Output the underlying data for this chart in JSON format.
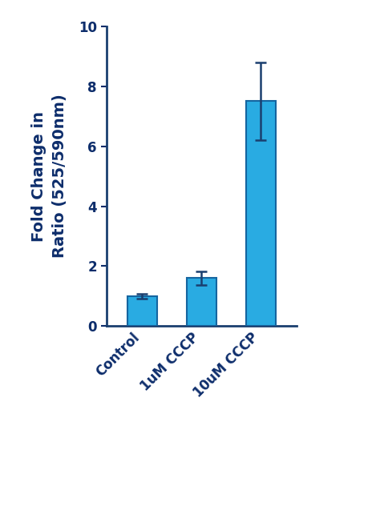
{
  "categories": [
    "Control",
    "1uM CCCP",
    "10uM CCCP"
  ],
  "values": [
    1.0,
    1.6,
    7.5
  ],
  "errors": [
    0.07,
    0.22,
    1.3
  ],
  "bar_color": "#29ABE2",
  "bar_edge_color": "#1565A0",
  "error_color": "#1A3F6F",
  "ylabel": "Fold Change in\nRatio (525/590nm)",
  "ylabel_color": "#0D2D6B",
  "tick_label_color": "#0D2D6B",
  "axis_color": "#1A3F6F",
  "ylim": [
    0,
    10
  ],
  "yticks": [
    0,
    2,
    4,
    6,
    8,
    10
  ],
  "bar_width": 0.5,
  "ylabel_fontsize": 14,
  "tick_fontsize": 12,
  "xtick_rotation": 45,
  "figsize": [
    4.74,
    6.57
  ],
  "dpi": 100
}
